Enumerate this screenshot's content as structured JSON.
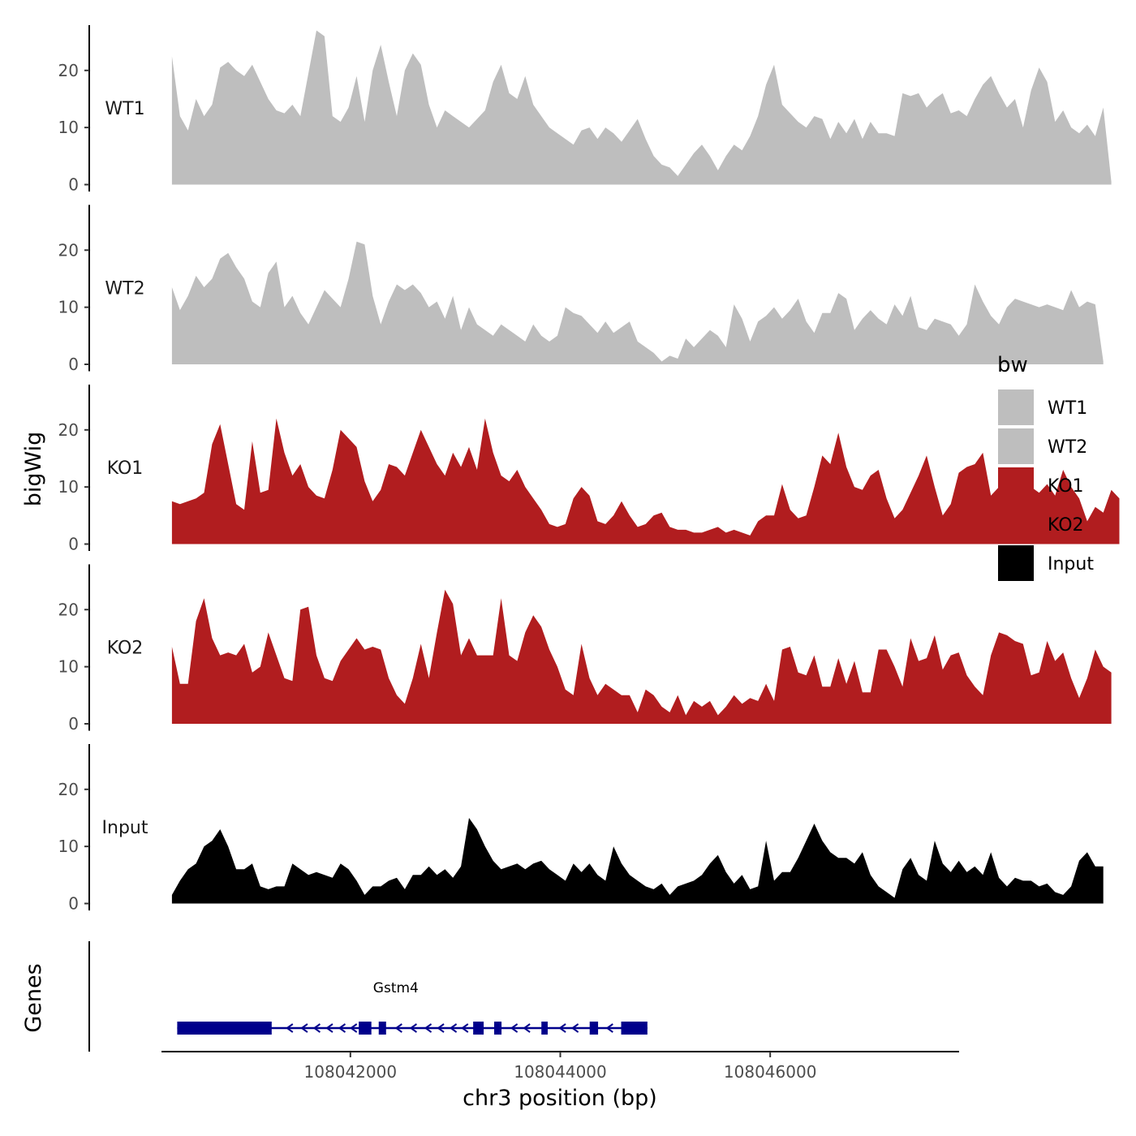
{
  "chart_data": {
    "type": "area",
    "ylabel": "bigWig",
    "genes_label": "Genes",
    "xlabel": "chr3 position (bp)",
    "xlim": [
      108040200,
      108047800
    ],
    "ylim": [
      0,
      28
    ],
    "yticks": [
      0,
      10,
      20
    ],
    "xticks": [
      108042000,
      108044000,
      108046000
    ],
    "xtick_labels": [
      "108042000",
      "108044000",
      "108046000"
    ],
    "x_start": 108040300,
    "x_step": 76.5,
    "tracks": [
      {
        "name": "WT1",
        "color": "#bebebe",
        "values": [
          22.5,
          12,
          9.5,
          15,
          12,
          14,
          20.5,
          21.5,
          20,
          19,
          21,
          18,
          15,
          13,
          12.5,
          14,
          12,
          19.5,
          27,
          26,
          12,
          11,
          13.5,
          19,
          11,
          20,
          24.5,
          18,
          12,
          20,
          23,
          21,
          14,
          10,
          13,
          12,
          11,
          10,
          11.5,
          13,
          18,
          21,
          16,
          15,
          19,
          14,
          12,
          10,
          9,
          8,
          7,
          9.5,
          10,
          8,
          10,
          9,
          7.5,
          9.5,
          11.5,
          8,
          5,
          3.5,
          3,
          1.5,
          3.5,
          5.5,
          7,
          5,
          2.5,
          5,
          7,
          6,
          8.5,
          12,
          17.5,
          21,
          14,
          12.5,
          11,
          10,
          12,
          11.5,
          8,
          11,
          9,
          11.5,
          8,
          11,
          9,
          9,
          8.5,
          16,
          15.5,
          16,
          13.5,
          15,
          16,
          12.5,
          13,
          12,
          15,
          17.5,
          19,
          16,
          13.5,
          15,
          10,
          16.5,
          20.5,
          18,
          11,
          13,
          10,
          9,
          10.5,
          8.5,
          13.5,
          0.5
        ]
      },
      {
        "name": "WT2",
        "color": "#bebebe",
        "values": [
          13.5,
          9.5,
          12,
          15.5,
          13.5,
          15,
          18.5,
          19.5,
          17,
          15,
          11,
          10,
          16,
          18,
          10,
          12,
          9,
          7,
          10,
          13,
          11.5,
          10,
          15,
          21.5,
          21,
          12,
          7,
          11,
          14,
          13,
          14,
          12.5,
          10,
          11,
          8,
          12,
          6,
          10,
          7,
          6,
          5,
          7,
          6,
          5,
          4,
          7,
          5,
          4,
          5,
          10,
          9,
          8.5,
          7,
          5.5,
          7.5,
          5.5,
          6.5,
          7.5,
          4,
          3,
          2,
          0.5,
          1.5,
          1,
          4.5,
          3,
          4.5,
          6,
          5,
          3,
          10.5,
          8,
          4,
          7.5,
          8.5,
          10,
          8,
          9.5,
          11.5,
          7.5,
          5.5,
          9,
          9,
          12.5,
          11.5,
          6,
          8,
          9.5,
          8,
          7,
          10.5,
          8.5,
          12,
          6.5,
          6,
          8,
          7.5,
          7,
          5,
          7,
          14,
          11,
          8.5,
          7,
          10,
          11.5,
          11,
          10.5,
          10,
          10.5,
          10,
          9.5,
          13,
          10,
          11,
          10.5,
          0.5
        ]
      },
      {
        "name": "KO1",
        "color": "#b11d1f",
        "values": [
          7.5,
          7,
          7.5,
          8,
          9,
          17.5,
          21,
          14,
          7,
          6,
          18,
          9,
          9.5,
          22,
          16,
          12,
          14,
          10,
          8.5,
          8,
          13,
          20,
          18.5,
          17,
          11,
          7.5,
          9.5,
          14,
          13.5,
          12,
          16,
          20,
          17,
          14,
          12,
          16,
          13.5,
          17,
          13,
          22,
          16,
          12,
          11,
          13,
          10,
          8,
          6,
          3.5,
          3,
          3.5,
          8,
          10,
          8.5,
          4,
          3.5,
          5,
          7.5,
          5,
          3,
          3.5,
          5,
          5.5,
          3,
          2.5,
          2.5,
          2,
          2,
          2.5,
          3,
          2,
          2.5,
          2,
          1.5,
          4,
          5,
          5,
          10.5,
          6,
          4.5,
          5,
          10,
          15.5,
          14,
          19.5,
          13.5,
          10,
          9.5,
          12,
          13,
          8,
          4.5,
          6,
          9,
          12,
          15.5,
          10,
          5,
          7,
          12.5,
          13.5,
          14,
          16,
          8.5,
          10,
          9,
          9,
          11,
          10,
          9,
          10.5,
          8.5,
          13,
          10,
          8,
          4,
          6.5,
          5.5,
          9.5,
          8
        ]
      },
      {
        "name": "KO2",
        "color": "#b11d1f",
        "values": [
          13.5,
          7,
          7,
          18,
          22,
          15,
          12,
          12.5,
          12,
          14,
          9,
          10,
          16,
          12,
          8,
          7.5,
          20,
          20.5,
          12,
          8,
          7.5,
          11,
          13,
          15,
          13,
          13.5,
          13,
          8,
          5,
          3.5,
          8,
          14,
          8,
          16,
          23.5,
          21,
          12,
          15,
          12,
          12,
          12,
          22,
          12,
          11,
          16,
          19,
          17,
          13,
          10,
          6,
          5,
          14,
          8,
          5,
          7,
          6,
          5,
          5,
          2,
          6,
          5,
          3,
          2,
          5,
          1.5,
          4,
          3,
          4,
          1.5,
          3,
          5,
          3.5,
          4.5,
          4,
          7,
          4,
          13,
          13.5,
          9,
          8.5,
          12,
          6.5,
          6.5,
          11.5,
          7,
          11,
          5.5,
          5.5,
          13,
          13,
          10,
          6.5,
          15,
          11,
          11.5,
          15.5,
          9.5,
          12,
          12.5,
          8.5,
          6.5,
          5,
          12,
          16,
          15.5,
          14.5,
          14,
          8.5,
          9,
          14.5,
          11,
          12.5,
          8,
          4.5,
          8,
          13,
          10,
          9
        ]
      },
      {
        "name": "Input",
        "color": "#000000",
        "values": [
          1.5,
          4,
          6,
          7,
          10,
          11,
          13,
          10,
          6,
          6,
          7,
          3,
          2.5,
          3,
          3,
          7,
          6,
          5,
          5.5,
          5,
          4.5,
          7,
          6,
          4,
          1.5,
          3,
          3,
          4,
          4.5,
          2.5,
          5,
          5,
          6.5,
          5,
          6,
          4.5,
          6.5,
          15,
          13,
          10,
          7.5,
          6,
          6.5,
          7,
          6,
          7,
          7.5,
          6,
          5,
          4,
          7,
          5.5,
          7,
          5,
          4,
          10,
          7,
          5,
          4,
          3,
          2.5,
          3.5,
          1.5,
          3,
          3.5,
          4,
          5,
          7,
          8.5,
          5.5,
          3.5,
          5,
          2.5,
          3,
          11,
          4,
          5.5,
          5.5,
          8,
          11,
          14,
          11,
          9,
          8,
          8,
          7,
          9,
          5,
          3,
          2,
          1,
          6,
          8,
          5,
          4,
          11,
          7,
          5.5,
          7.5,
          5.5,
          6.5,
          5,
          9,
          4.5,
          3,
          4.5,
          4,
          4,
          3,
          3.5,
          2,
          1.5,
          3,
          7.5,
          9,
          6.5,
          6.5
        ]
      }
    ],
    "legend": {
      "title": "bw",
      "position": "right",
      "entries": [
        {
          "label": "WT1",
          "color": "#bebebe"
        },
        {
          "label": "WT2",
          "color": "#bebebe"
        },
        {
          "label": "KO1",
          "color": "#b11d1f"
        },
        {
          "label": "KO2",
          "color": "#b11d1f"
        },
        {
          "label": "Input",
          "color": "#000000"
        }
      ]
    },
    "gene": {
      "name": "Gstm4",
      "color": "#00008b",
      "strand": "-",
      "start": 108040350,
      "end": 108044830,
      "exons": [
        [
          108040350,
          108041250
        ],
        [
          108042080,
          108042200
        ],
        [
          108042270,
          108042340
        ],
        [
          108043170,
          108043270
        ],
        [
          108043370,
          108043440
        ],
        [
          108043820,
          108043880
        ],
        [
          108044280,
          108044360
        ],
        [
          108044580,
          108044830
        ]
      ],
      "arrows": [
        108041420,
        108041560,
        108041680,
        108041800,
        108041920,
        108042030,
        108042460,
        108042600,
        108042740,
        108042860,
        108042980,
        108043090,
        108043560,
        108043680,
        108044020,
        108044140,
        108044470
      ]
    }
  }
}
